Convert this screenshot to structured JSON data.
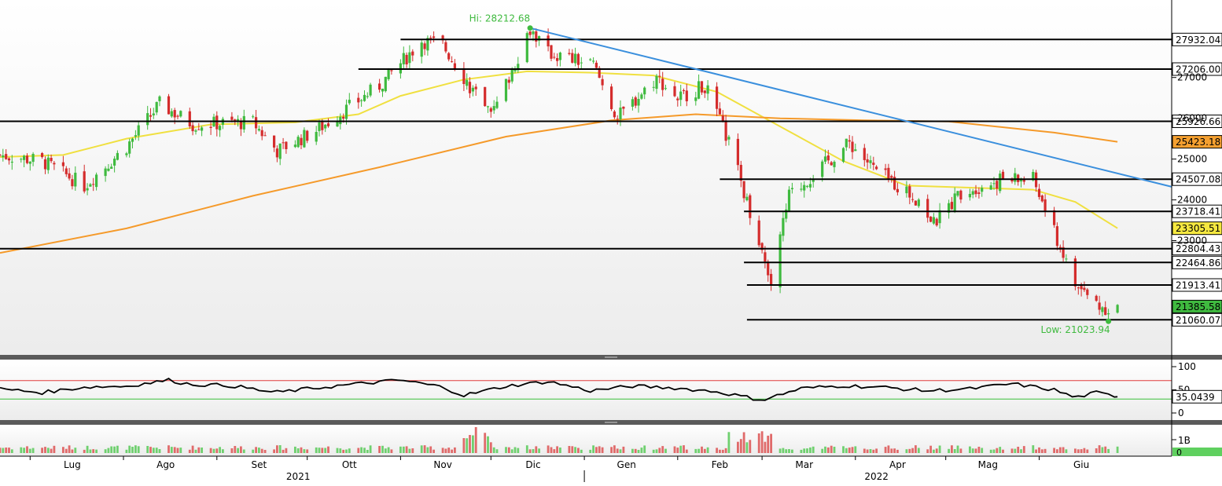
{
  "chart_data": [
    {
      "type": "candlestick",
      "panel": "price",
      "x_range": [
        "2021-06-21",
        "2022-07-15"
      ],
      "ylim": [
        20200,
        28900
      ],
      "y_ticks": [
        23000,
        24000,
        25000,
        26000,
        27000
      ],
      "grid": false,
      "annotations": {
        "high_label": "Hi: 28212.68",
        "high": {
          "date": "2021-12-14",
          "value": 28212.68
        },
        "low_label": "Low: 21023.94",
        "low": {
          "date": "2022-06-24",
          "value": 21023.94
        }
      },
      "horizontal_levels": [
        {
          "value": 27932.04,
          "label": "27932.04",
          "from": "2021-11-01"
        },
        {
          "value": 27206.0,
          "label": "27206.00",
          "from": "2021-10-18"
        },
        {
          "value": 25926.66,
          "label": "25926.66",
          "from": "2021-06-21"
        },
        {
          "value": 24507.08,
          "label": "24507.08",
          "from": "2022-02-15"
        },
        {
          "value": 23718.41,
          "label": "23718.41",
          "from": "2022-02-23"
        },
        {
          "value": 22804.43,
          "label": "22804.43",
          "from": "2021-06-21"
        },
        {
          "value": 22464.86,
          "label": "22464.86",
          "from": "2022-02-23"
        },
        {
          "value": 21913.41,
          "label": "21913.41",
          "from": "2022-02-24"
        },
        {
          "value": 21060.07,
          "label": "21060.07",
          "from": "2022-02-24"
        }
      ],
      "trendline": {
        "color": "#3a8fdd",
        "points": [
          {
            "date": "2021-12-14",
            "value": 28212.68
          },
          {
            "date": "2022-07-15",
            "value": 24320
          }
        ]
      },
      "series": [
        {
          "type": "line",
          "color": "#f0e040",
          "label": "23305.51",
          "points": [
            {
              "date": "2021-06-21",
              "value": 25050
            },
            {
              "date": "2021-07-12",
              "value": 25100
            },
            {
              "date": "2021-08-02",
              "value": 25500
            },
            {
              "date": "2021-08-30",
              "value": 25850
            },
            {
              "date": "2021-09-27",
              "value": 25900
            },
            {
              "date": "2021-10-18",
              "value": 26100
            },
            {
              "date": "2021-11-01",
              "value": 26550
            },
            {
              "date": "2021-11-22",
              "value": 26950
            },
            {
              "date": "2021-12-13",
              "value": 27150
            },
            {
              "date": "2022-01-03",
              "value": 27120
            },
            {
              "date": "2022-01-24",
              "value": 27050
            },
            {
              "date": "2022-02-14",
              "value": 26650
            },
            {
              "date": "2022-03-07",
              "value": 25800
            },
            {
              "date": "2022-03-28",
              "value": 24950
            },
            {
              "date": "2022-04-18",
              "value": 24350
            },
            {
              "date": "2022-05-09",
              "value": 24300
            },
            {
              "date": "2022-05-30",
              "value": 24250
            },
            {
              "date": "2022-06-13",
              "value": 23950
            },
            {
              "date": "2022-06-27",
              "value": 23305.51
            }
          ]
        },
        {
          "type": "line",
          "color": "#f59a2a",
          "label": "25423.18",
          "points": [
            {
              "date": "2021-06-21",
              "value": 22700
            },
            {
              "date": "2021-08-02",
              "value": 23300
            },
            {
              "date": "2021-09-13",
              "value": 24100
            },
            {
              "date": "2021-10-25",
              "value": 24800
            },
            {
              "date": "2021-12-06",
              "value": 25550
            },
            {
              "date": "2022-01-10",
              "value": 25950
            },
            {
              "date": "2022-02-07",
              "value": 26100
            },
            {
              "date": "2022-03-07",
              "value": 26000
            },
            {
              "date": "2022-04-04",
              "value": 25950
            },
            {
              "date": "2022-05-02",
              "value": 25920
            },
            {
              "date": "2022-06-06",
              "value": 25650
            },
            {
              "date": "2022-06-27",
              "value": 25423.18
            }
          ]
        }
      ],
      "last_price_label": "21385.58"
    },
    {
      "type": "line",
      "panel": "oscillator",
      "ylim": [
        0,
        100
      ],
      "y_ticks": [
        "100",
        "50",
        "0"
      ],
      "reference_lines": [
        {
          "value": 70,
          "color": "#e03a3a"
        },
        {
          "value": 30,
          "color": "#3ac03a"
        }
      ],
      "points": [
        {
          "date": "2021-06-21",
          "value": 52
        },
        {
          "date": "2021-07-05",
          "value": 44
        },
        {
          "date": "2021-07-19",
          "value": 56
        },
        {
          "date": "2021-08-02",
          "value": 58
        },
        {
          "date": "2021-08-16",
          "value": 71
        },
        {
          "date": "2021-08-23",
          "value": 62
        },
        {
          "date": "2021-09-06",
          "value": 59
        },
        {
          "date": "2021-09-20",
          "value": 44
        },
        {
          "date": "2021-10-04",
          "value": 54
        },
        {
          "date": "2021-10-18",
          "value": 63
        },
        {
          "date": "2021-11-01",
          "value": 71
        },
        {
          "date": "2021-11-15",
          "value": 56
        },
        {
          "date": "2021-11-22",
          "value": 38
        },
        {
          "date": "2021-12-06",
          "value": 58
        },
        {
          "date": "2021-12-20",
          "value": 68
        },
        {
          "date": "2022-01-03",
          "value": 48
        },
        {
          "date": "2022-01-17",
          "value": 58
        },
        {
          "date": "2022-01-31",
          "value": 54
        },
        {
          "date": "2022-02-14",
          "value": 46
        },
        {
          "date": "2022-03-01",
          "value": 28
        },
        {
          "date": "2022-03-14",
          "value": 53
        },
        {
          "date": "2022-03-28",
          "value": 59
        },
        {
          "date": "2022-04-11",
          "value": 55
        },
        {
          "date": "2022-04-25",
          "value": 48
        },
        {
          "date": "2022-05-09",
          "value": 52
        },
        {
          "date": "2022-05-23",
          "value": 63
        },
        {
          "date": "2022-06-06",
          "value": 50
        },
        {
          "date": "2022-06-13",
          "value": 33
        },
        {
          "date": "2022-06-20",
          "value": 44
        },
        {
          "date": "2022-06-27",
          "value": 35.0439
        }
      ],
      "last_value_label": "35.0439"
    },
    {
      "type": "bar",
      "panel": "volume",
      "y_ticks": [
        "1B",
        "0"
      ],
      "highlight_date": "2021-11-26"
    }
  ],
  "x_axis": {
    "months": [
      {
        "label": "Lug",
        "date": "2021-07-15"
      },
      {
        "label": "Ago",
        "date": "2021-08-15"
      },
      {
        "label": "Set",
        "date": "2021-09-15"
      },
      {
        "label": "Ott",
        "date": "2021-10-15"
      },
      {
        "label": "Nov",
        "date": "2021-11-15"
      },
      {
        "label": "Dic",
        "date": "2021-12-15"
      },
      {
        "label": "Gen",
        "date": "2022-01-15"
      },
      {
        "label": "Feb",
        "date": "2022-02-15"
      },
      {
        "label": "Mar",
        "date": "2022-03-15"
      },
      {
        "label": "Apr",
        "date": "2022-04-15"
      },
      {
        "label": "Mag",
        "date": "2022-05-15"
      },
      {
        "label": "Giu",
        "date": "2022-06-15"
      }
    ],
    "years": [
      {
        "label": "2021",
        "date": "2021-09-28"
      },
      {
        "label": "2022",
        "date": "2022-04-08"
      }
    ]
  },
  "colors": {
    "up": "#3fba3f",
    "down": "#d42c2c",
    "level": "#000000"
  }
}
